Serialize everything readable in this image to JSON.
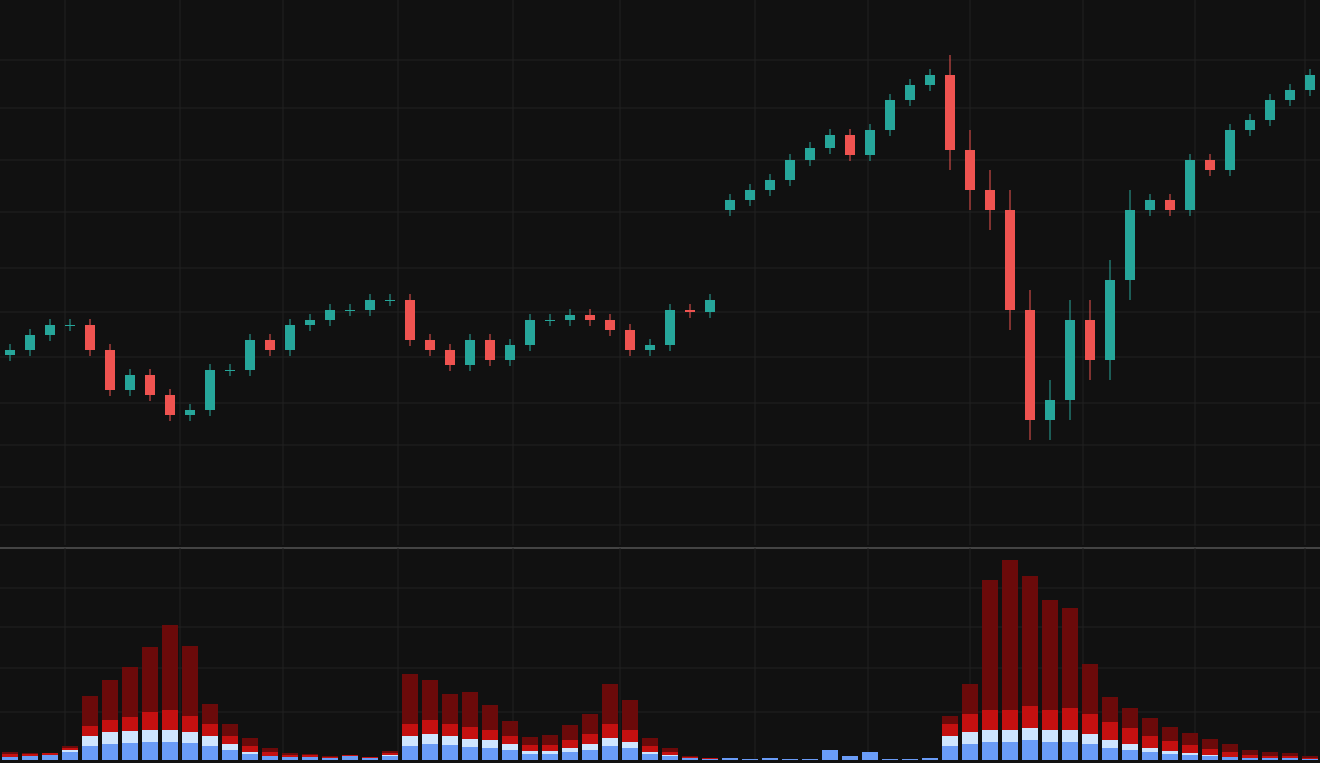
{
  "chart_data": [
    {
      "type": "candlestick",
      "x": [
        0,
        1,
        2,
        3,
        4,
        5,
        6,
        7,
        8,
        9,
        10,
        11,
        12,
        13,
        14,
        15,
        16,
        17,
        18,
        19,
        20,
        21,
        22,
        23,
        24,
        25,
        26,
        27,
        28,
        29,
        30,
        31,
        32,
        33,
        34,
        35,
        36,
        37,
        38,
        39,
        40,
        41,
        42,
        43,
        44,
        45,
        46,
        47,
        48,
        49,
        50,
        51,
        52,
        53,
        54,
        55,
        56,
        57,
        58,
        59,
        60,
        61,
        62,
        63,
        64,
        65
      ],
      "open": [
        190,
        195,
        210,
        220,
        220,
        195,
        155,
        170,
        150,
        130,
        135,
        175,
        175,
        205,
        195,
        220,
        225,
        235,
        235,
        245,
        245,
        205,
        195,
        180,
        205,
        185,
        200,
        225,
        225,
        230,
        225,
        215,
        195,
        200,
        235,
        233,
        335,
        345,
        355,
        365,
        385,
        397,
        410,
        390,
        415,
        445,
        460,
        470,
        395,
        355,
        335,
        235,
        125,
        145,
        225,
        185,
        265,
        335,
        345,
        335,
        385,
        375,
        415,
        425,
        445,
        455
      ],
      "high": [
        201,
        216,
        226,
        226,
        226,
        201,
        176,
        176,
        156,
        141,
        181,
        181,
        211,
        211,
        226,
        231,
        241,
        241,
        251,
        251,
        251,
        211,
        201,
        211,
        211,
        206,
        231,
        231,
        236,
        236,
        231,
        221,
        206,
        241,
        241,
        251,
        351,
        361,
        371,
        391,
        403,
        416,
        416,
        421,
        451,
        466,
        476,
        490,
        415,
        375,
        355,
        255,
        165,
        245,
        245,
        285,
        355,
        351,
        351,
        391,
        391,
        421,
        431,
        451,
        461,
        476
      ],
      "low": [
        184,
        189,
        204,
        214,
        189,
        149,
        149,
        144,
        124,
        124,
        129,
        169,
        169,
        189,
        189,
        214,
        219,
        229,
        229,
        239,
        199,
        189,
        174,
        174,
        179,
        179,
        194,
        219,
        219,
        219,
        209,
        189,
        189,
        194,
        227,
        227,
        329,
        339,
        349,
        359,
        379,
        391,
        384,
        384,
        409,
        439,
        454,
        375,
        335,
        315,
        215,
        105,
        105,
        125,
        165,
        165,
        245,
        329,
        329,
        329,
        369,
        369,
        409,
        419,
        439,
        449
      ],
      "close": [
        195,
        210,
        220,
        220,
        195,
        155,
        170,
        150,
        130,
        135,
        175,
        175,
        205,
        195,
        220,
        225,
        235,
        235,
        245,
        245,
        205,
        195,
        180,
        205,
        185,
        200,
        225,
        225,
        230,
        225,
        215,
        195,
        200,
        235,
        233,
        245,
        345,
        355,
        365,
        385,
        397,
        410,
        390,
        415,
        445,
        460,
        470,
        395,
        355,
        335,
        235,
        125,
        145,
        225,
        185,
        265,
        335,
        345,
        335,
        385,
        375,
        415,
        425,
        445,
        455,
        470
      ],
      "up_color": "#26a69a",
      "down_color": "#ef5350",
      "xlim": [
        -0.5,
        65.5
      ],
      "xticks": [
        2.75,
        8.5,
        13.65,
        19.4,
        25.15,
        30.5,
        37.25,
        42.9,
        48,
        53.65,
        59.25,
        64.75
      ],
      "ylim": [
        0,
        545
      ],
      "yticks": [
        485,
        437,
        385,
        333,
        277,
        233,
        188,
        142,
        100,
        58,
        20
      ],
      "grid": true
    },
    {
      "type": "stacked_bar",
      "x": [
        0,
        1,
        2,
        3,
        4,
        5,
        6,
        7,
        8,
        9,
        10,
        11,
        12,
        13,
        14,
        15,
        16,
        17,
        18,
        19,
        20,
        21,
        22,
        23,
        24,
        25,
        26,
        27,
        28,
        29,
        30,
        31,
        32,
        33,
        34,
        35,
        36,
        37,
        38,
        39,
        40,
        41,
        42,
        43,
        44,
        45,
        46,
        47,
        48,
        49,
        50,
        51,
        52,
        53,
        54,
        55,
        56,
        57,
        58,
        59,
        60,
        61,
        62,
        63,
        64,
        65
      ],
      "series": [
        {
          "color": "#6a9cf7",
          "values": [
            3,
            4,
            5,
            8,
            14,
            16,
            17,
            18,
            18,
            17,
            14,
            10,
            6,
            4,
            3,
            3,
            2,
            4,
            2,
            4,
            14,
            16,
            15,
            13,
            12,
            10,
            6,
            6,
            8,
            10,
            14,
            12,
            6,
            4,
            2,
            1,
            2,
            1,
            2,
            1,
            1,
            10,
            4,
            8,
            1,
            1,
            2,
            14,
            16,
            18,
            18,
            20,
            18,
            18,
            16,
            12,
            10,
            8,
            6,
            5,
            4,
            3,
            2,
            2,
            2,
            1
          ]
        },
        {
          "color": "#cfe6ff",
          "values": [
            0,
            0,
            0,
            2,
            10,
            12,
            12,
            12,
            12,
            11,
            10,
            6,
            2,
            0,
            0,
            0,
            0,
            0,
            0,
            1,
            10,
            10,
            9,
            8,
            8,
            6,
            3,
            3,
            4,
            6,
            8,
            6,
            2,
            1,
            0,
            0,
            0,
            0,
            0,
            0,
            0,
            0,
            0,
            0,
            0,
            0,
            0,
            10,
            12,
            12,
            12,
            12,
            12,
            12,
            10,
            8,
            6,
            4,
            3,
            2,
            1,
            0,
            0,
            0,
            0,
            0
          ]
        },
        {
          "color": "#c41010",
          "values": [
            3,
            2,
            2,
            2,
            10,
            12,
            14,
            18,
            20,
            16,
            12,
            8,
            6,
            4,
            2,
            2,
            1,
            1,
            1,
            2,
            12,
            14,
            12,
            12,
            10,
            8,
            6,
            6,
            8,
            10,
            14,
            12,
            6,
            3,
            1,
            1,
            0,
            0,
            0,
            0,
            0,
            0,
            0,
            0,
            0,
            0,
            0,
            12,
            18,
            20,
            20,
            22,
            20,
            22,
            20,
            18,
            16,
            12,
            10,
            8,
            6,
            5,
            3,
            2,
            2,
            1
          ]
        },
        {
          "color": "#6b0a0a",
          "values": [
            2,
            1,
            0,
            2,
            30,
            40,
            50,
            65,
            85,
            70,
            20,
            12,
            8,
            4,
            2,
            1,
            1,
            0,
            0,
            2,
            50,
            40,
            30,
            35,
            25,
            15,
            8,
            10,
            15,
            20,
            40,
            30,
            8,
            4,
            1,
            0,
            0,
            0,
            0,
            0,
            0,
            0,
            0,
            0,
            0,
            0,
            0,
            8,
            30,
            130,
            150,
            130,
            110,
            100,
            50,
            25,
            20,
            18,
            14,
            12,
            10,
            8,
            5,
            4,
            3,
            2
          ]
        }
      ],
      "xlim": [
        -0.5,
        65.5
      ],
      "xticks": [
        2.75,
        8.5,
        13.65,
        19.4,
        25.15,
        30.5,
        37.25,
        42.9,
        48,
        53.65,
        59.25,
        64.75
      ],
      "ylim": [
        0,
        212
      ],
      "yticks": [
        172,
        133,
        92,
        48
      ],
      "grid": true
    }
  ]
}
